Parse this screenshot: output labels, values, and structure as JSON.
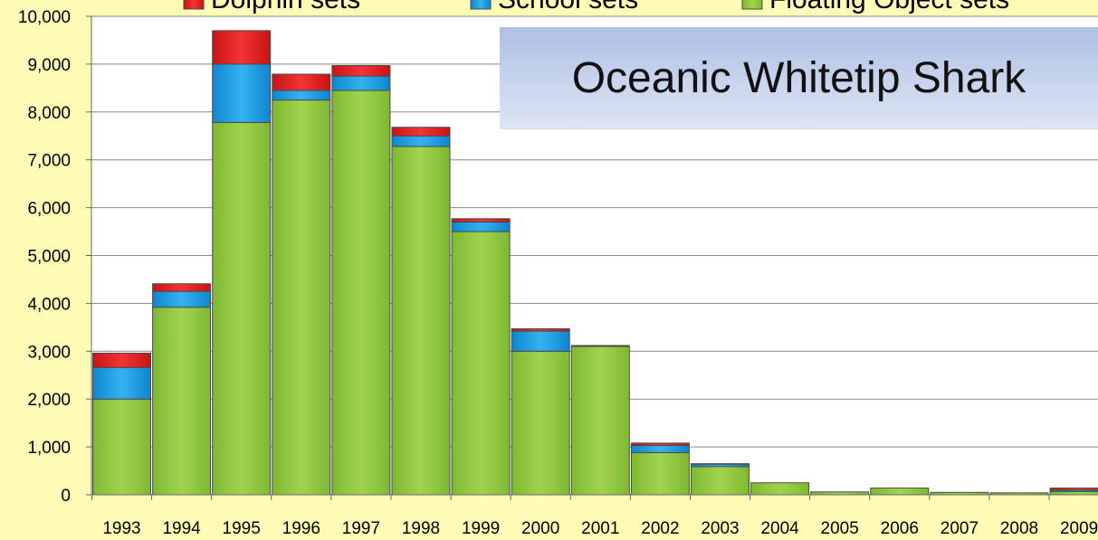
{
  "chart_data": {
    "type": "bar",
    "stacked": true,
    "title": "Oceanic Whitetip Shark",
    "xlabel": "",
    "ylabel": "",
    "categories": [
      "1993",
      "1994",
      "1995",
      "1996",
      "1997",
      "1998",
      "1999",
      "2000",
      "2001",
      "2002",
      "2003",
      "2004",
      "2005",
      "2006",
      "2007",
      "2008",
      "2009"
    ],
    "ylim": [
      0,
      10000
    ],
    "yticks": [
      0,
      1000,
      2000,
      3000,
      4000,
      5000,
      6000,
      7000,
      8000,
      9000,
      10000
    ],
    "ytick_labels": [
      "0",
      "1,000",
      "2,000",
      "3,000",
      "4,000",
      "5,000",
      "6,000",
      "7,000",
      "8,000",
      "9,000",
      "10,000"
    ],
    "grid": true,
    "legend_position": "top",
    "series": [
      {
        "name": "Floating Object sets",
        "color": "#8cc43c",
        "values": [
          2000,
          3920,
          7780,
          8250,
          8450,
          7280,
          5500,
          3000,
          3100,
          880,
          590,
          250,
          60,
          140,
          50,
          40,
          70
        ]
      },
      {
        "name": "School sets",
        "color": "#1a9ae0",
        "values": [
          660,
          330,
          1220,
          200,
          300,
          220,
          200,
          420,
          0,
          150,
          50,
          0,
          0,
          0,
          0,
          0,
          30
        ]
      },
      {
        "name": "Dolphin sets",
        "color": "#e01e1e",
        "values": [
          300,
          160,
          700,
          340,
          220,
          180,
          70,
          50,
          20,
          50,
          10,
          0,
          0,
          0,
          0,
          0,
          40
        ]
      }
    ],
    "legend_order": [
      "Dolphin sets",
      "School sets",
      "Floating Object sets"
    ]
  }
}
